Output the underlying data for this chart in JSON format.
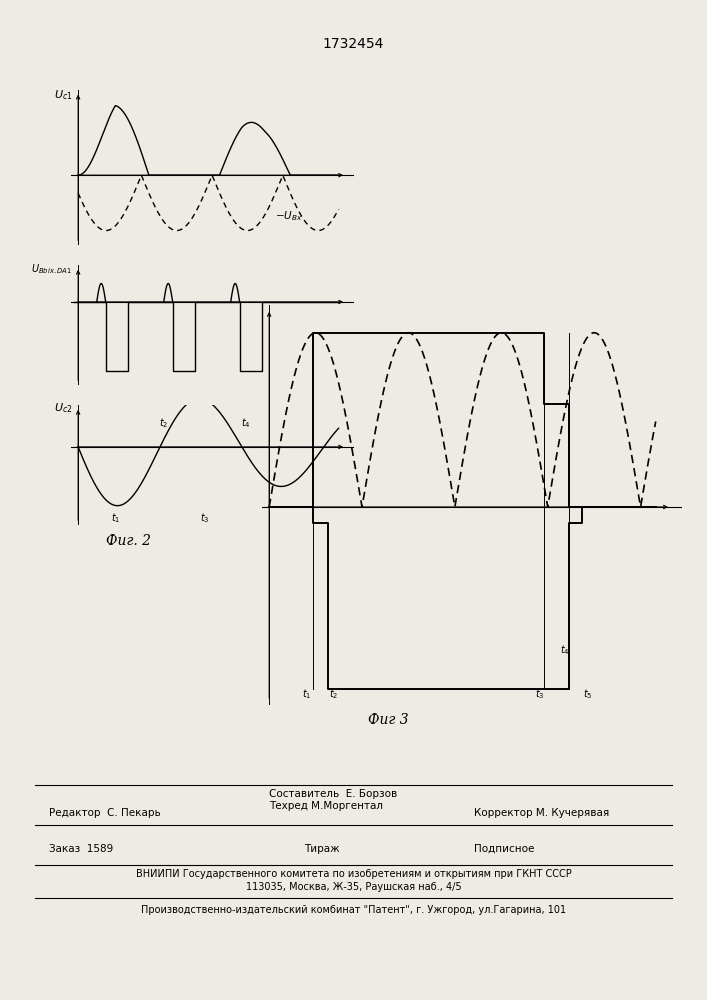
{
  "title": "1732454",
  "bg_color": "#eeebe4",
  "fig2_label": "Фиг. 2",
  "fig3_label": "Фиг 3"
}
